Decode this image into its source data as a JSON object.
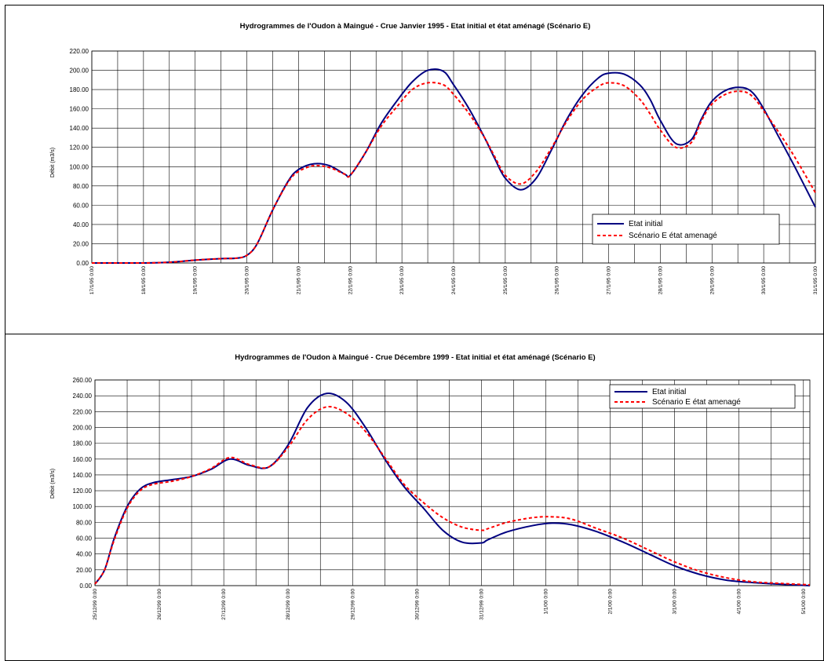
{
  "chart_data": [
    {
      "type": "line",
      "title": "Hydrogrammes de l'Oudon à Maingué - Crue Janvier 1995 - Etat initial et état aménagé (Scénario E)",
      "xlabel": "",
      "ylabel": "Débit (m3/s)",
      "ylim": [
        0,
        220
      ],
      "ytick_step": 20,
      "grid": true,
      "legend_position": "lower-right",
      "x_ticks": [
        "17/1/95 0:00",
        "18/1/95 0:00",
        "19/1/95 0:00",
        "20/1/95 0:00",
        "21/1/95 0:00",
        "22/1/95 0:00",
        "23/1/95 0:00",
        "24/1/95 0:00",
        "25/1/95 0:00",
        "26/1/95 0:00",
        "27/1/95 0:00",
        "28/1/95 0:00",
        "29/1/95 0:00",
        "30/1/95 0:00",
        "31/1/95 0:00"
      ],
      "series": [
        {
          "name": "Etat initial",
          "color": "#000080",
          "dash": "solid",
          "x": [
            0,
            0.5,
            1,
            1.4,
            1.7,
            2,
            2.5,
            2.8,
            3,
            3.2,
            3.5,
            3.8,
            4,
            4.3,
            4.6,
            4.9,
            5,
            5.3,
            5.6,
            5.9,
            6.2,
            6.5,
            6.8,
            7,
            7.3,
            7.6,
            7.8,
            8,
            8.3,
            8.6,
            8.9,
            9.2,
            9.5,
            9.8,
            10,
            10.3,
            10.6,
            10.8,
            11,
            11.3,
            11.6,
            11.8,
            12,
            12.3,
            12.6,
            12.8,
            13,
            13.3,
            13.6,
            14
          ],
          "y": [
            0,
            0,
            0,
            0.5,
            1.5,
            3,
            4.5,
            5,
            8,
            20,
            55,
            85,
            97,
            103,
            101,
            92,
            91,
            115,
            145,
            168,
            188,
            200,
            199,
            185,
            160,
            130,
            108,
            88,
            76,
            88,
            118,
            150,
            175,
            192,
            197,
            196,
            185,
            170,
            148,
            124,
            128,
            150,
            168,
            180,
            182,
            176,
            160,
            130,
            100,
            58
          ]
        },
        {
          "name": "Scénario E état amenagé",
          "color": "#ff0000",
          "dash": "dashed",
          "x": [
            0,
            0.5,
            1,
            1.4,
            1.7,
            2,
            2.5,
            2.8,
            3,
            3.2,
            3.5,
            3.8,
            4,
            4.3,
            4.6,
            4.9,
            5,
            5.3,
            5.6,
            5.9,
            6.2,
            6.5,
            6.8,
            7,
            7.3,
            7.6,
            7.8,
            8,
            8.3,
            8.6,
            8.9,
            9.2,
            9.5,
            9.8,
            10,
            10.3,
            10.6,
            10.8,
            11,
            11.3,
            11.6,
            11.8,
            12,
            12.3,
            12.6,
            12.8,
            13,
            13.3,
            13.6,
            14
          ],
          "y": [
            0,
            0,
            0,
            0.5,
            1.5,
            3,
            4.5,
            5,
            8,
            20,
            55,
            84,
            95,
            101,
            99,
            92,
            91,
            115,
            142,
            162,
            180,
            187,
            185,
            175,
            155,
            130,
            110,
            91,
            82,
            95,
            120,
            148,
            170,
            183,
            187,
            184,
            170,
            155,
            138,
            120,
            125,
            148,
            165,
            176,
            178,
            172,
            158,
            135,
            110,
            73
          ]
        }
      ]
    },
    {
      "type": "line",
      "title": "Hydrogrammes de l'Oudon à Maingué - Crue Décembre 1999 - Etat initial et état aménagé (Scénario E)",
      "xlabel": "",
      "ylabel": "Débit (m3/s)",
      "ylim": [
        0,
        260
      ],
      "ytick_step": 20,
      "grid": true,
      "legend_position": "top-right",
      "x_ticks": [
        "25/12/99 0:00",
        "26/12/99 0:00",
        "27/12/99 0:00",
        "28/12/99 0:00",
        "29/12/99 0:00",
        "30/12/99 0:00",
        "31/12/99 0:00",
        "1/1/00 0:00",
        "2/1/00 0:00",
        "3/1/00 0:00",
        "4/1/00 0:00",
        "5/1/00 0:00"
      ],
      "x_range": [
        0,
        11.1
      ],
      "series": [
        {
          "name": "Etat initial",
          "color": "#000080",
          "dash": "solid",
          "x": [
            0,
            0.15,
            0.3,
            0.5,
            0.7,
            0.9,
            1.2,
            1.5,
            1.8,
            2.1,
            2.4,
            2.7,
            3,
            3.3,
            3.6,
            3.9,
            4.2,
            4.5,
            4.8,
            5.1,
            5.4,
            5.7,
            6,
            6.1,
            6.4,
            6.8,
            7.1,
            7.4,
            7.8,
            8.2,
            8.6,
            9,
            9.4,
            9.8,
            10.2,
            10.6,
            11.1
          ],
          "y": [
            2,
            20,
            60,
            100,
            122,
            130,
            134,
            138,
            147,
            160,
            152,
            150,
            178,
            225,
            243,
            232,
            200,
            160,
            125,
            98,
            70,
            55,
            54,
            58,
            68,
            76,
            79,
            77,
            68,
            55,
            40,
            25,
            14,
            7,
            4,
            2,
            0
          ]
        },
        {
          "name": "Scénario E état amenagé",
          "color": "#ff0000",
          "dash": "dashed",
          "x": [
            0,
            0.15,
            0.3,
            0.5,
            0.7,
            0.9,
            1.2,
            1.5,
            1.8,
            2.1,
            2.4,
            2.7,
            3,
            3.3,
            3.6,
            3.9,
            4.2,
            4.5,
            4.8,
            5.1,
            5.4,
            5.7,
            6,
            6.1,
            6.4,
            6.8,
            7.1,
            7.4,
            7.8,
            8.2,
            8.6,
            9,
            9.4,
            9.8,
            10.2,
            10.6,
            11.1
          ],
          "y": [
            2,
            20,
            58,
            98,
            120,
            128,
            132,
            138,
            148,
            162,
            153,
            150,
            175,
            210,
            226,
            218,
            195,
            162,
            128,
            105,
            86,
            74,
            70,
            72,
            80,
            86,
            87,
            84,
            72,
            60,
            45,
            30,
            18,
            10,
            5,
            3,
            1
          ]
        }
      ]
    }
  ]
}
